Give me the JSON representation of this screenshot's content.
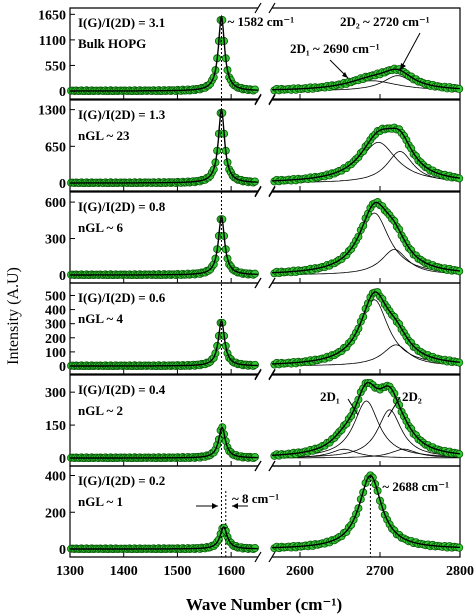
{
  "chart_data": {
    "type": "line",
    "xlabel": "Wave Number (cm⁻¹)",
    "ylabel": "Intensity (A.U)",
    "x_ticks_left": [
      1300,
      1400,
      1500,
      1600
    ],
    "x_ticks_right": [
      2600,
      2700,
      2800
    ],
    "x_ticks_labels": [
      "1300",
      "1400",
      "1500",
      "1600",
      "2600",
      "2700",
      "2800"
    ],
    "x_range_left": [
      1300,
      1650
    ],
    "x_range_right": [
      2565,
      2800
    ],
    "colors": {
      "marker_fill": "#32c832",
      "marker_edge": "#0a5a0a",
      "fit": "#000000"
    },
    "panels": [
      {
        "ratio_label": "I(G)/I(2D) = 3.1",
        "layer_label": "Bulk HOPG",
        "yticks": [
          "0",
          "550",
          "1100",
          "1650"
        ],
        "ylim": [
          0,
          1700
        ],
        "G": {
          "center": 1582,
          "width": 14,
          "height": 1600
        },
        "twoD": [
          {
            "center": 2690,
            "width": 80,
            "height": 220
          },
          {
            "center": 2722,
            "width": 45,
            "height": 330
          }
        ],
        "annotations": [
          "~ 1582 cm⁻¹",
          "2D₂ ~ 2720 cm⁻¹",
          "2D₁ ~ 2690 cm⁻¹"
        ]
      },
      {
        "ratio_label": "I(G)/I(2D) = 1.3",
        "layer_label": "nGL ~ 23",
        "yticks": [
          "0",
          "650",
          "1300"
        ],
        "ylim": [
          0,
          1400
        ],
        "G": {
          "center": 1582,
          "width": 14,
          "height": 1300
        },
        "twoD": [
          {
            "center": 2698,
            "width": 55,
            "height": 720
          },
          {
            "center": 2725,
            "width": 40,
            "height": 560
          }
        ]
      },
      {
        "ratio_label": "I(G)/I(2D) = 0.8",
        "layer_label": "nGL ~ 6",
        "yticks": [
          "0",
          "300",
          "600"
        ],
        "ylim": [
          0,
          650
        ],
        "G": {
          "center": 1582,
          "width": 14,
          "height": 480
        },
        "twoD": [
          {
            "center": 2693,
            "width": 45,
            "height": 510
          },
          {
            "center": 2718,
            "width": 40,
            "height": 210
          }
        ]
      },
      {
        "ratio_label": "I(G)/I(2D) = 0.6",
        "layer_label": "nGL ~ 4",
        "yticks": [
          "0",
          "100",
          "200",
          "300",
          "400",
          "500"
        ],
        "ylim": [
          0,
          560
        ],
        "G": {
          "center": 1582,
          "width": 14,
          "height": 320
        },
        "twoD": [
          {
            "center": 2693,
            "width": 42,
            "height": 470
          },
          {
            "center": 2720,
            "width": 40,
            "height": 150
          }
        ]
      },
      {
        "ratio_label": "I(G)/I(2D) = 0.4",
        "layer_label": "nGL ~ 2",
        "yticks": [
          "0",
          "150",
          "300"
        ],
        "ylim": [
          0,
          360
        ],
        "G": {
          "center": 1583,
          "width": 15,
          "height": 140
        },
        "twoD": [
          {
            "center": 2683,
            "width": 38,
            "height": 260
          },
          {
            "center": 2712,
            "width": 36,
            "height": 220
          },
          {
            "center": 2655,
            "width": 40,
            "height": 40
          },
          {
            "center": 2730,
            "width": 40,
            "height": 40
          }
        ],
        "annotations": [
          "2D₁",
          "2D₂"
        ]
      },
      {
        "ratio_label": "I(G)/I(2D) = 0.2",
        "layer_label": "nGL ~ 1",
        "yticks": [
          "0",
          "200",
          "400"
        ],
        "ylim": [
          0,
          430
        ],
        "G": {
          "center": 1586,
          "width": 16,
          "height": 120
        },
        "twoD": [
          {
            "center": 2688,
            "width": 34,
            "height": 400
          }
        ],
        "annotations": [
          "~ 8 cm⁻¹",
          "~ 2688 cm⁻¹"
        ]
      }
    ]
  }
}
